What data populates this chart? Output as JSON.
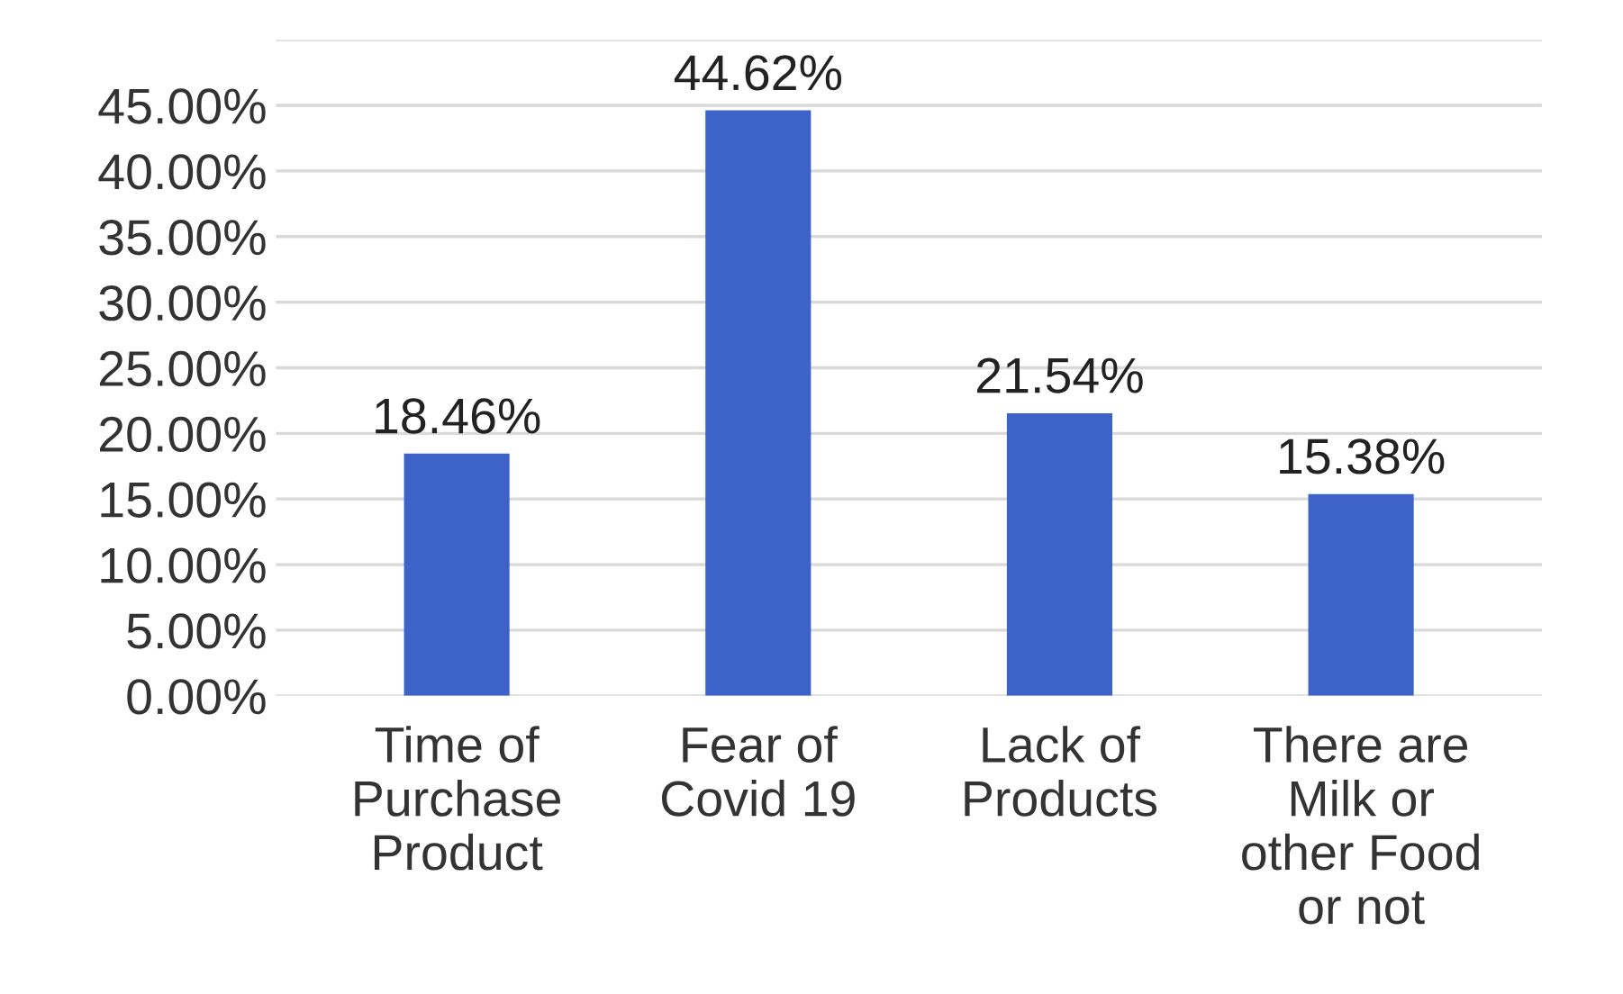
{
  "chart_data": {
    "type": "bar",
    "categories": [
      "Time of\nPurchase\nProduct",
      "Fear of\nCovid 19",
      "Lack of\nProducts",
      "There are\nMilk or\nother Food\nor not"
    ],
    "values": [
      18.46,
      44.62,
      21.54,
      15.38
    ],
    "value_labels": [
      "18.46%",
      "44.62%",
      "21.54%",
      "15.38%"
    ],
    "color": "#3d63c9",
    "ylim": [
      0,
      50
    ],
    "yticks": [
      {
        "value": 0,
        "label": "0.00%"
      },
      {
        "value": 5,
        "label": "5.00%"
      },
      {
        "value": 10,
        "label": "10.00%"
      },
      {
        "value": 15,
        "label": "15.00%"
      },
      {
        "value": 20,
        "label": "20.00%"
      },
      {
        "value": 25,
        "label": "25.00%"
      },
      {
        "value": 30,
        "label": "30.00%"
      },
      {
        "value": 35,
        "label": "35.00%"
      },
      {
        "value": 40,
        "label": "40.00%"
      },
      {
        "value": 45,
        "label": "45.00%"
      },
      {
        "value": 50,
        "label": null
      }
    ],
    "grid": "y",
    "legend": false
  }
}
